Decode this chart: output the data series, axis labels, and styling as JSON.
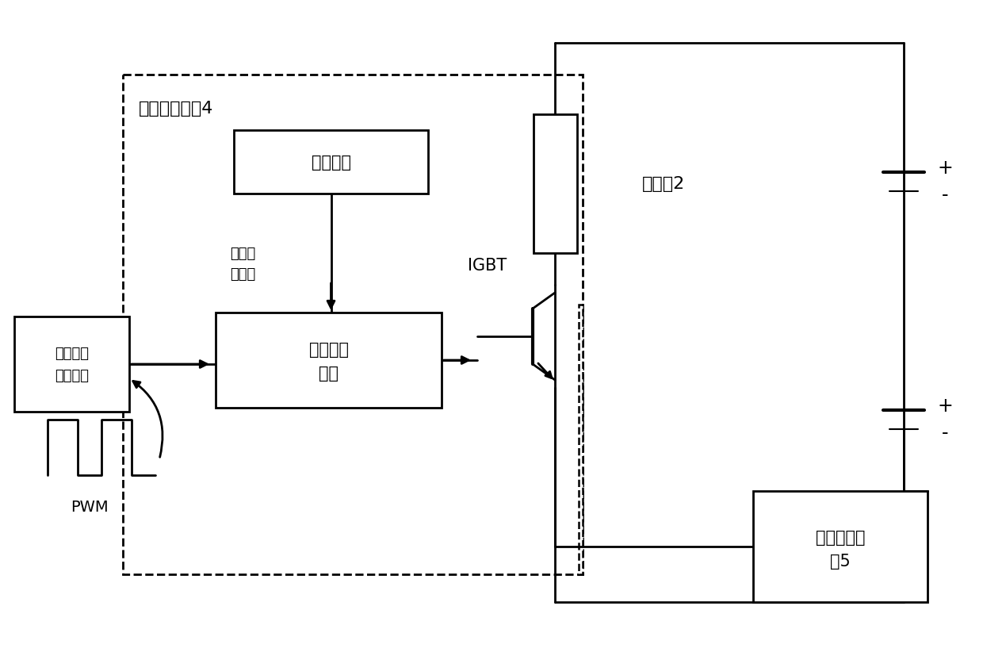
{
  "bg_color": "#ffffff",
  "lc": "#000000",
  "figsize": [
    12.4,
    8.28
  ],
  "dpi": 100,
  "labels": {
    "module_interface_l1": "电流调整",
    "module_interface_l2": "模块接口",
    "current_adjust_module": "电流调整模块4",
    "isolated_power": "隔离电源",
    "isolated_power_supply_l1": "隔离电",
    "isolated_power_supply_l2": "源供电",
    "isolated_drive_l1": "隔离驱动",
    "isolated_drive_l2": "单元",
    "igbt": "IGBT",
    "heating_sheet": "加热片2",
    "current_collect_l1": "电流采集模",
    "current_collect_l2": "块5",
    "pwm": "PWM",
    "plus": "+",
    "minus": "-"
  }
}
